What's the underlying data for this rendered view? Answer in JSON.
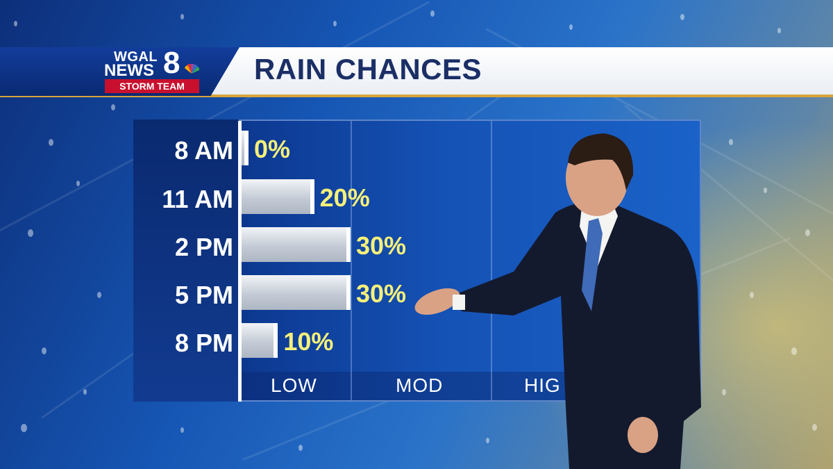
{
  "station": {
    "call": "WGAL",
    "news": "NEWS",
    "channel": "8",
    "team": "STORM TEAM"
  },
  "header": {
    "title": "RAIN CHANCES"
  },
  "colors": {
    "bar_value_text": "#f6f07a",
    "panel": "#1552b5",
    "header_text": "#1b2f66"
  },
  "chart_data": {
    "type": "bar",
    "orientation": "horizontal",
    "title": "RAIN CHANCES",
    "categories": [
      "8 AM",
      "11 AM",
      "2 PM",
      "5 PM",
      "8 PM"
    ],
    "values": [
      0,
      20,
      30,
      30,
      10
    ],
    "value_labels": [
      "0%",
      "20%",
      "30%",
      "30%",
      "10%"
    ],
    "xlim": [
      0,
      100
    ],
    "level_labels": [
      "LOW",
      "MOD",
      "HIG"
    ],
    "grid": true
  }
}
